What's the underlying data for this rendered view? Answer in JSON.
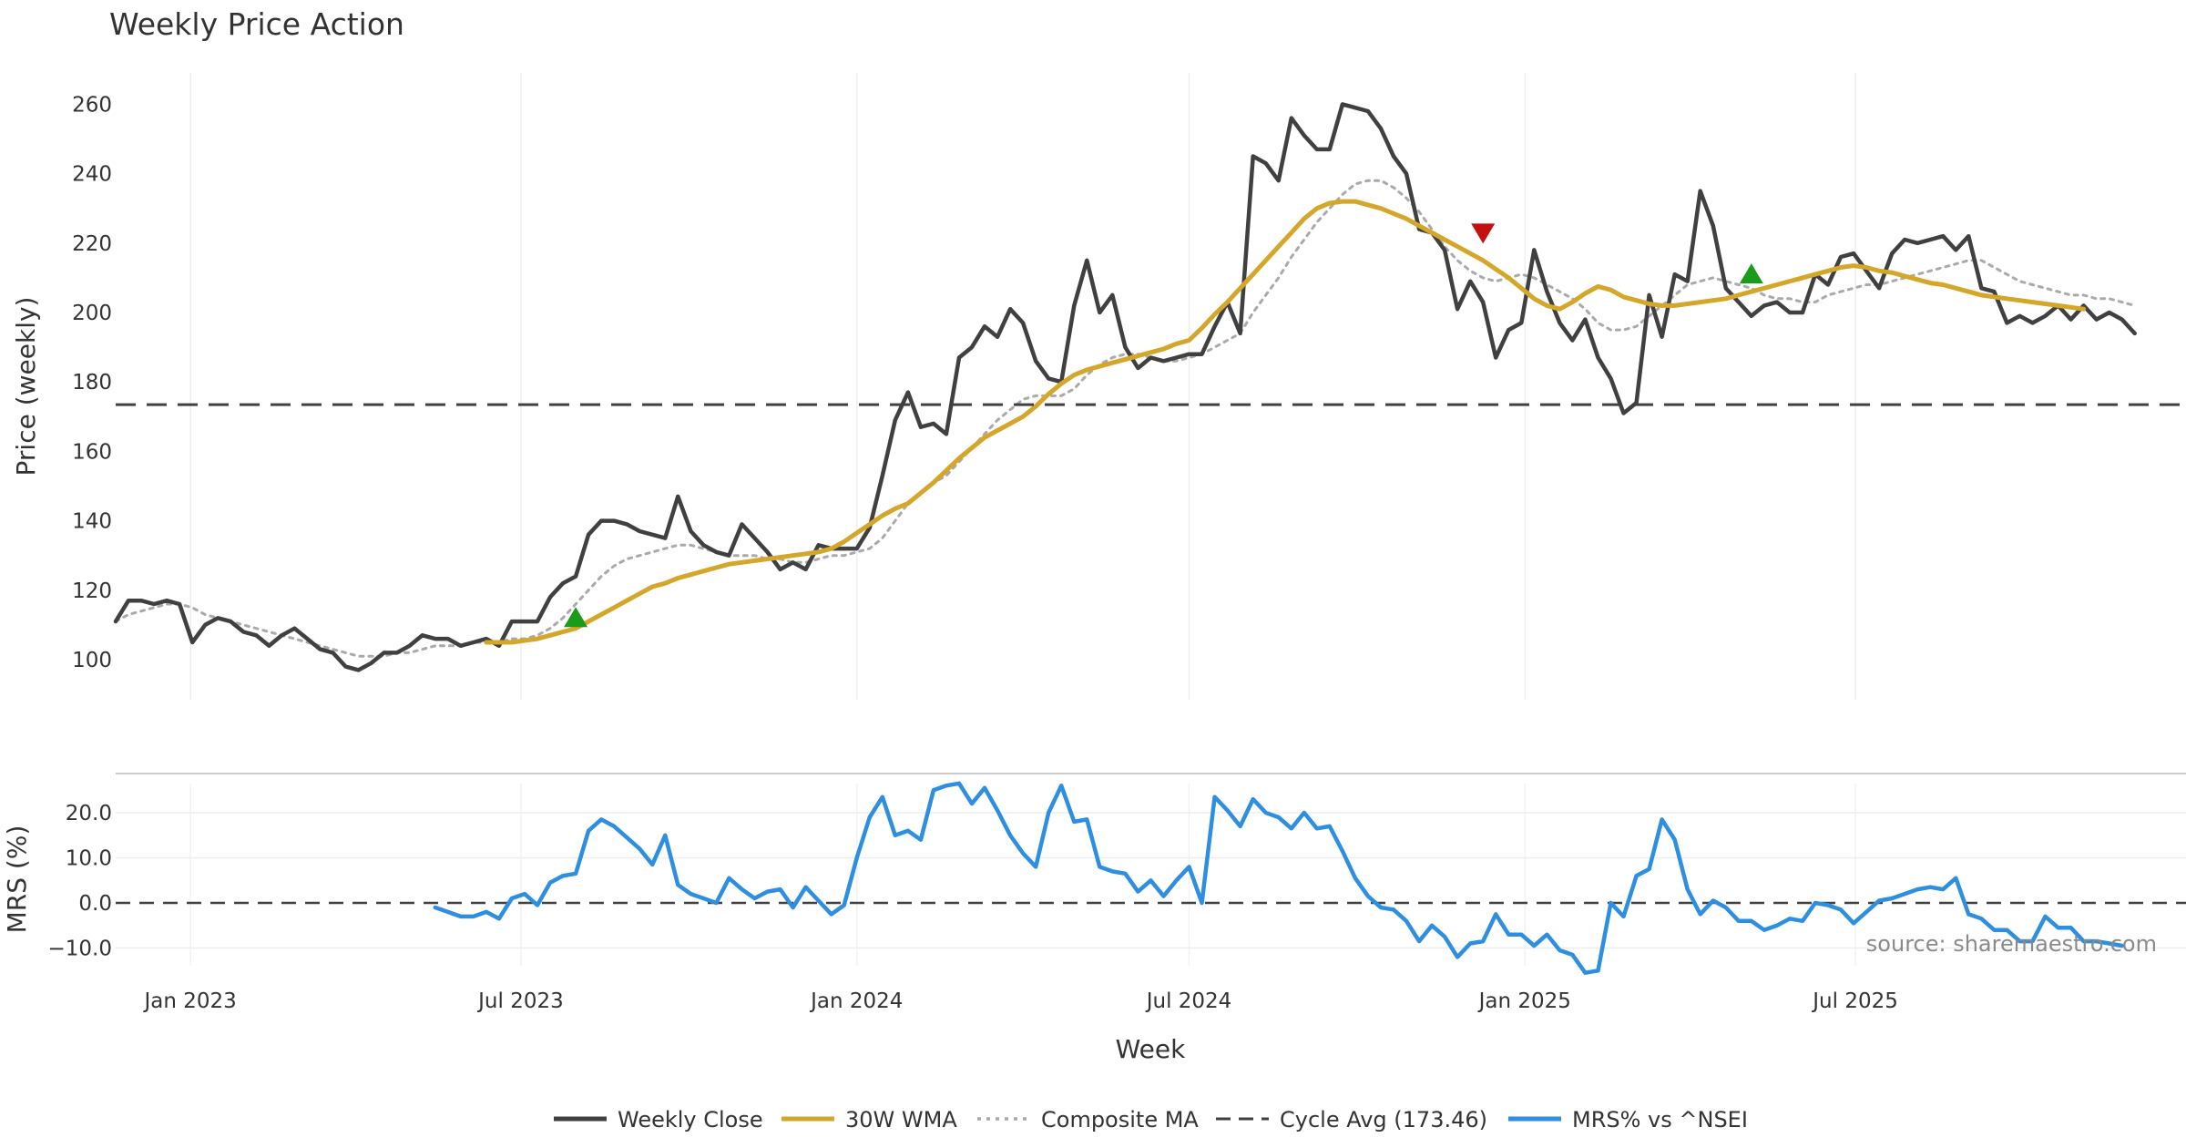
{
  "chart_data": [
    {
      "type": "line",
      "title": "Weekly Price Action",
      "xlabel": "Week",
      "ylabel": "Price (weekly)",
      "ylim": [
        90,
        270
      ],
      "yticks": [
        100,
        120,
        140,
        160,
        180,
        200,
        220,
        240,
        260
      ],
      "x_start": "2022-11-21",
      "x_step_days": 7,
      "xticks": [
        {
          "date": "2023-01-01",
          "label": "Jan 2023"
        },
        {
          "date": "2023-07-01",
          "label": "Jul 2023"
        },
        {
          "date": "2024-01-01",
          "label": "Jan 2024"
        },
        {
          "date": "2024-07-01",
          "label": "Jul 2024"
        },
        {
          "date": "2025-01-01",
          "label": "Jan 2025"
        },
        {
          "date": "2025-07-01",
          "label": "Jul 2025"
        }
      ],
      "series": [
        {
          "name": "Weekly Close",
          "color": "#404040",
          "style": "solid",
          "values": [
            111,
            117,
            117,
            116,
            117,
            116,
            105,
            110,
            112,
            111,
            108,
            107,
            104,
            107,
            109,
            106,
            103,
            102,
            98,
            97,
            99,
            102,
            102,
            104,
            107,
            106,
            106,
            104,
            105,
            106,
            104,
            111,
            111,
            111,
            118,
            122,
            124,
            136,
            140,
            140,
            139,
            137,
            136,
            135,
            147,
            137,
            133,
            131,
            130,
            139,
            135,
            131,
            126,
            128,
            126,
            133,
            132,
            132,
            132,
            138,
            153,
            169,
            177,
            167,
            168,
            165,
            187,
            190,
            196,
            193,
            201,
            197,
            186,
            181,
            180,
            202,
            215,
            200,
            205,
            190,
            184,
            187,
            186,
            187,
            188,
            188,
            196,
            203,
            194,
            245,
            243,
            238,
            256,
            251,
            247,
            247,
            260,
            259,
            258,
            253,
            245,
            240,
            224,
            223,
            218,
            201,
            209,
            203,
            187,
            195,
            197,
            218,
            206,
            197,
            192,
            198,
            187,
            181,
            171,
            174,
            205,
            193,
            211,
            209,
            235,
            225,
            207,
            203,
            199,
            202,
            203,
            200,
            200,
            211,
            208,
            216,
            217,
            212,
            207,
            217,
            221,
            220,
            221,
            222,
            218,
            222,
            207,
            206,
            197,
            199,
            197,
            199,
            202,
            198,
            202,
            198,
            200,
            198,
            194
          ]
        },
        {
          "name": "30W WMA",
          "color": "#D4A62A",
          "style": "solid",
          "start_index": 29,
          "values": [
            105,
            105,
            105,
            105.5,
            106,
            107,
            108,
            109,
            111,
            113,
            115,
            117,
            119,
            121,
            122,
            123.5,
            124.5,
            125.5,
            126.5,
            127.5,
            128,
            128.5,
            129,
            129.5,
            130,
            130.5,
            131,
            132,
            134,
            136.5,
            139,
            141.5,
            143.5,
            145,
            148,
            151,
            154.5,
            158,
            161,
            164,
            166,
            168,
            170,
            173,
            176.5,
            179.5,
            182,
            183.5,
            184.5,
            185.5,
            186.5,
            187.5,
            188.5,
            189.5,
            191,
            192,
            195.5,
            199.5,
            203,
            207,
            211,
            215,
            219,
            223,
            227,
            230,
            231.5,
            232,
            232,
            231,
            230,
            228.5,
            227,
            225,
            223,
            221,
            219,
            217,
            215,
            212.5,
            210,
            207,
            204,
            202,
            201,
            203,
            205.5,
            207.5,
            206.5,
            204.5,
            203.5,
            202.5,
            202,
            202,
            202.5,
            203,
            203.5,
            204,
            205,
            206,
            207,
            208,
            209,
            210,
            211,
            212,
            213,
            213.5,
            213,
            212,
            211.5,
            210.5,
            209.5,
            208.5,
            208,
            207,
            206,
            205,
            204.5,
            204,
            203.5,
            203,
            202.5,
            202,
            201.5,
            201
          ]
        },
        {
          "name": "Composite MA",
          "color": "#AAAAAA",
          "style": "dotted",
          "values": [
            111,
            113,
            114,
            115,
            116,
            116,
            115,
            113,
            112,
            111,
            110,
            109,
            108,
            107,
            106,
            105,
            104,
            103,
            102,
            101,
            101,
            101,
            102,
            102,
            103,
            104,
            104,
            104,
            105,
            105,
            105,
            106,
            106,
            107,
            109,
            112,
            116,
            120,
            124,
            127,
            129,
            130,
            131,
            132,
            133,
            133,
            132,
            131,
            130,
            130,
            130,
            129,
            129,
            128,
            128,
            129,
            130,
            130,
            131,
            132,
            135,
            140,
            145,
            148,
            151,
            153,
            157,
            161,
            165,
            169,
            172,
            175,
            176,
            176,
            176,
            178,
            182,
            185,
            187,
            188,
            188,
            187,
            186,
            186,
            187,
            188,
            190,
            192,
            194,
            200,
            205,
            210,
            216,
            221,
            226,
            230,
            234,
            237,
            238,
            238,
            236,
            233,
            229,
            224,
            219,
            215,
            212,
            210,
            209,
            210,
            211,
            210,
            208,
            206,
            204,
            201,
            197,
            195,
            195,
            196,
            199,
            202,
            205,
            208,
            209,
            210,
            209,
            208,
            207,
            205,
            204,
            204,
            203,
            203,
            205,
            206,
            207,
            208,
            208,
            209,
            210,
            211,
            212,
            213,
            214,
            215,
            215,
            213,
            211,
            209,
            208,
            207,
            206,
            205,
            205,
            204,
            204,
            203,
            202
          ]
        },
        {
          "name": "Cycle Avg (173.46)",
          "color": "#404040",
          "style": "dashed",
          "value": 173.46
        }
      ],
      "annotations": [
        {
          "type": "buy",
          "marker": "up-triangle",
          "color": "#1a9c1a",
          "index": 36,
          "value": 112
        },
        {
          "type": "sell",
          "marker": "down-triangle",
          "color": "#c41010",
          "index": 107,
          "value": 223
        },
        {
          "type": "buy",
          "marker": "up-triangle",
          "color": "#1a9c1a",
          "index": 128,
          "value": 211
        }
      ]
    },
    {
      "type": "line",
      "title": "",
      "xlabel": "Week",
      "ylabel": "MRS (%)",
      "ylim": [
        -17,
        27
      ],
      "yticks": [
        20,
        10,
        0,
        -10
      ],
      "ytick_labels": [
        "20.0",
        "10.0",
        "0.0",
        "−10.0"
      ],
      "reference_line": 0,
      "series": [
        {
          "name": "MRS% vs ^NSEI",
          "color": "#2E8FE0",
          "style": "solid",
          "start_index": 25,
          "values": [
            -1,
            -2,
            -3,
            -3,
            -2,
            -3.5,
            1,
            2,
            -0.5,
            4.5,
            6,
            6.5,
            16,
            18.5,
            17,
            14.5,
            12,
            8.5,
            15,
            4,
            2,
            1,
            0,
            5.5,
            3,
            1,
            2.5,
            3,
            -1,
            3.5,
            0.5,
            -2.5,
            -0.5,
            10,
            19,
            23.5,
            15,
            16,
            14,
            25,
            26,
            26.5,
            22,
            25.5,
            20.5,
            15,
            11,
            8,
            20,
            26,
            18,
            18.5,
            8,
            7,
            6.5,
            2.5,
            5,
            1.5,
            5,
            8,
            0,
            23.5,
            20.5,
            17,
            23,
            20,
            19,
            16.5,
            20,
            16.5,
            17,
            11.5,
            5.5,
            1.5,
            -1,
            -1.5,
            -4,
            -8.5,
            -5,
            -7.5,
            -12,
            -9,
            -8.5,
            -2.5,
            -7,
            -7,
            -9.5,
            -7,
            -10.5,
            -11.5,
            -15.5,
            -15,
            0,
            -3,
            6,
            7.5,
            18.5,
            14,
            3,
            -2.5,
            0.5,
            -1,
            -4,
            -4,
            -6,
            -5,
            -3.5,
            -4,
            0,
            -0.5,
            -1.5,
            -4.5,
            -2,
            0.5,
            1,
            2,
            3,
            3.5,
            3,
            5.5,
            -2.5,
            -3.5,
            -6,
            -6,
            -8.5,
            -8.5,
            -3,
            -5.5,
            -5.5,
            -8.5,
            -8.5,
            -9,
            -9.5
          ]
        }
      ],
      "source_note": "source: sharemaestro.com"
    }
  ],
  "legend": [
    {
      "label": "Weekly Close",
      "color": "#404040",
      "style": "solid"
    },
    {
      "label": "30W WMA",
      "color": "#D4A62A",
      "style": "solid"
    },
    {
      "label": "Composite MA",
      "color": "#AAAAAA",
      "style": "dotted"
    },
    {
      "label": "Cycle Avg (173.46)",
      "color": "#404040",
      "style": "dashed"
    },
    {
      "label": "MRS% vs ^NSEI",
      "color": "#2E8FE0",
      "style": "solid"
    }
  ]
}
